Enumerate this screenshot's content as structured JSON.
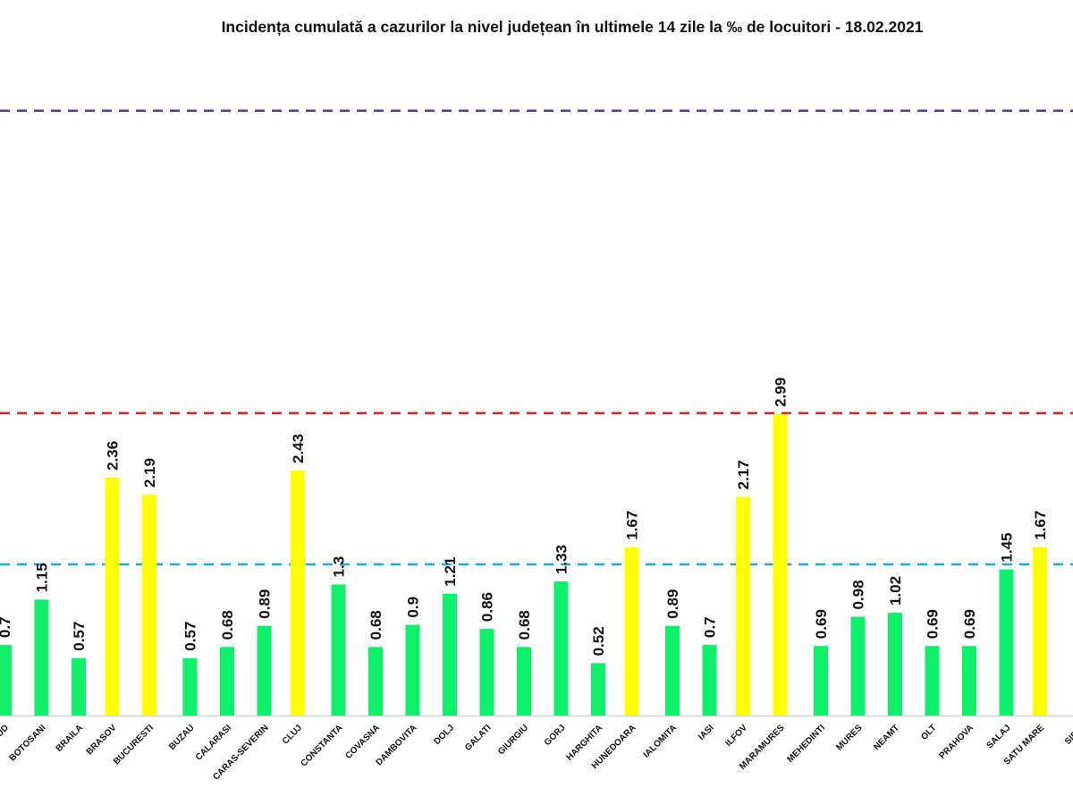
{
  "chart_data": {
    "type": "bar",
    "title": "Incidența cumulată a cazurilor la nivel județean în ultimele 14 zile la ‰ de locuitori - 18.02.2021",
    "xlabel": "",
    "ylabel": "",
    "ylim": [
      0,
      7.1
    ],
    "grid": false,
    "categories": [
      "BISTRITA-NASAUD",
      "BOTOSANI",
      "BRAILA",
      "BRASOV",
      "BUCURESTI",
      "BUZAU",
      "CALARASI",
      "CARAS-SEVERIN",
      "CLUJ",
      "CONSTANTA",
      "COVASNA",
      "DAMBOVITA",
      "DOLJ",
      "GALATI",
      "GIURGIU",
      "GORJ",
      "HARGHITA",
      "HUNEDOARA",
      "IALOMITA",
      "IASI",
      "ILFOV",
      "MARAMURES",
      "MEHEDINTI",
      "MURES",
      "NEAMT",
      "OLT",
      "PRAHOVA",
      "SALAJ",
      "SATU MARE",
      "SIBIU"
    ],
    "values": [
      0.7,
      1.15,
      0.57,
      2.36,
      2.19,
      0.57,
      0.68,
      0.89,
      2.43,
      1.3,
      0.68,
      0.9,
      1.21,
      0.86,
      0.68,
      1.33,
      0.52,
      1.67,
      0.89,
      0.7,
      2.17,
      2.99,
      0.69,
      0.98,
      1.02,
      0.69,
      0.69,
      1.45,
      1.67,
      null
    ],
    "value_labels": [
      "0.7",
      "1.15",
      "0.57",
      "2.36",
      "2.19",
      "0.57",
      "0.68",
      "0.89",
      "2.43",
      "1.3",
      "0.68",
      "0.9",
      "1.21",
      "0.86",
      "0.68",
      "1.33",
      "0.52",
      "1.67",
      "0.89",
      "0.7",
      "2.17",
      "2.99",
      "0.69",
      "0.98",
      "1.02",
      "0.69",
      "0.69",
      "1.45",
      "1.67",
      ""
    ],
    "thresholds": [
      {
        "value": 1.5,
        "color": "#1fa5d6"
      },
      {
        "value": 3,
        "color": "#e02020"
      },
      {
        "value": 6,
        "color": "#7030a0"
      }
    ],
    "colors": {
      "green": "#0ff06a",
      "yellow": "#ffff00",
      "axis": "#d0d0d0",
      "text": "#111111"
    },
    "yellow_range": [
      1.5,
      3
    ]
  }
}
